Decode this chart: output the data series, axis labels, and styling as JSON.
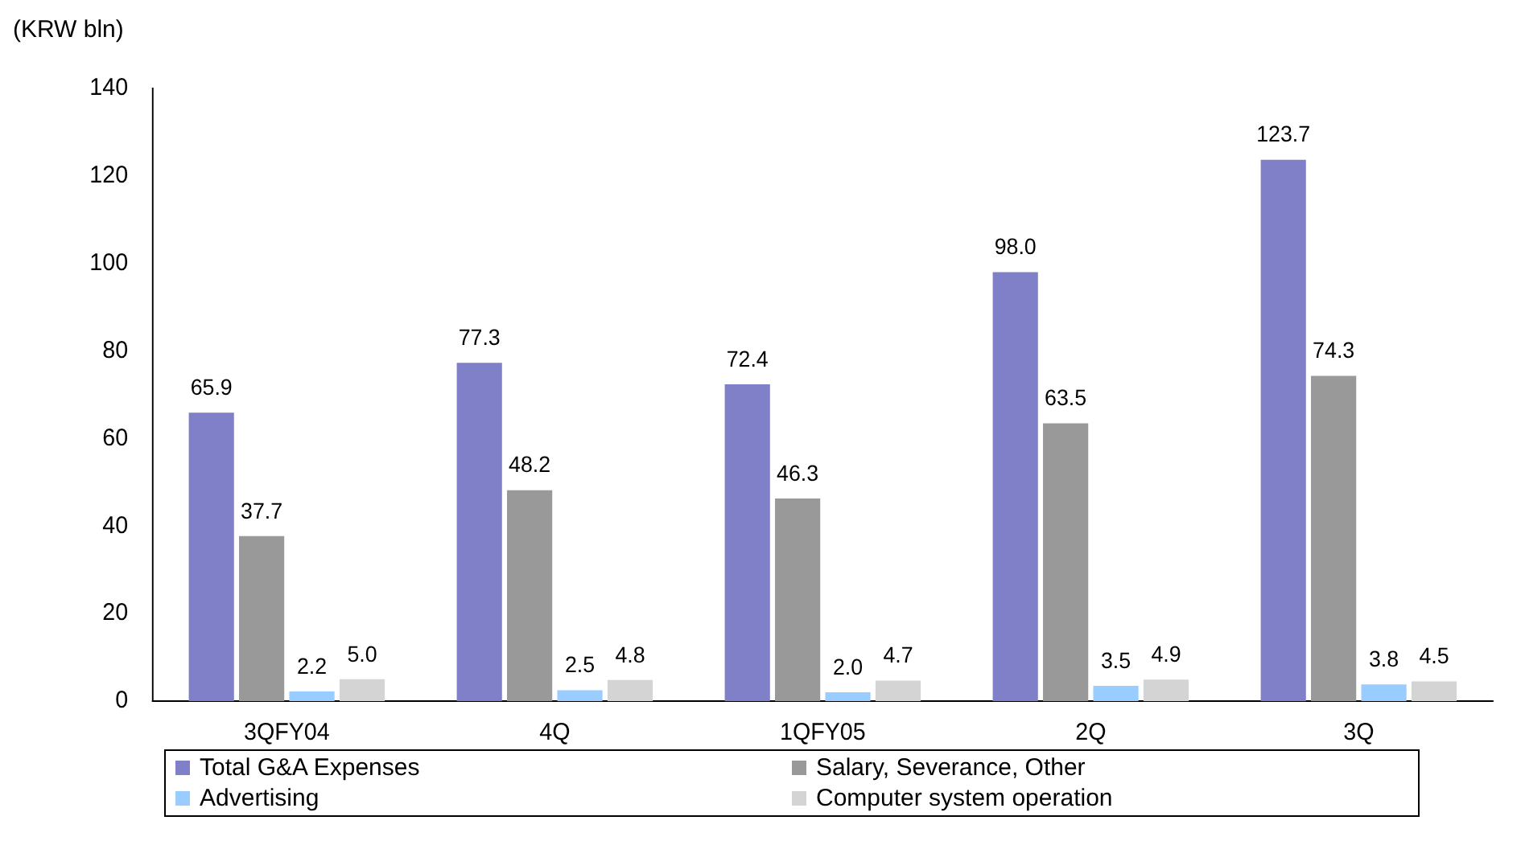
{
  "chart_data": {
    "type": "bar",
    "ylabel": "(KRW bln)",
    "categories": [
      "3QFY04",
      "4Q",
      "1QFY05",
      "2Q",
      "3Q"
    ],
    "series": [
      {
        "name": "Total G&A Expenses",
        "color": "#8080c8",
        "values": [
          65.9,
          77.3,
          72.4,
          98,
          123.7
        ],
        "value_labels": [
          "65.9",
          "77.3",
          "72.4",
          "98.0",
          "123.7"
        ]
      },
      {
        "name": "Salary, Severance, Other",
        "color": "#999999",
        "values": [
          37.7,
          48.2,
          46.3,
          63.5,
          74.3
        ],
        "value_labels": [
          "37.7",
          "48.2",
          "46.3",
          "63.5",
          "74.3"
        ]
      },
      {
        "name": "Advertising",
        "color": "#99ccff",
        "values": [
          2.2,
          2.5,
          2,
          3.5,
          3.8
        ],
        "value_labels": [
          "2.2",
          "2.5",
          "2.0",
          "3.5",
          "3.8"
        ]
      },
      {
        "name": "Computer system operation",
        "color": "#d4d4d4",
        "values": [
          5,
          4.8,
          4.7,
          4.9,
          4.5
        ],
        "value_labels": [
          "5.0",
          "4.8",
          "4.7",
          "4.9",
          "4.5"
        ]
      }
    ],
    "ylim": [
      0,
      140
    ],
    "yticks": [
      0,
      20,
      40,
      60,
      80,
      100,
      120,
      140
    ],
    "grid": false,
    "legend": "bottom"
  }
}
